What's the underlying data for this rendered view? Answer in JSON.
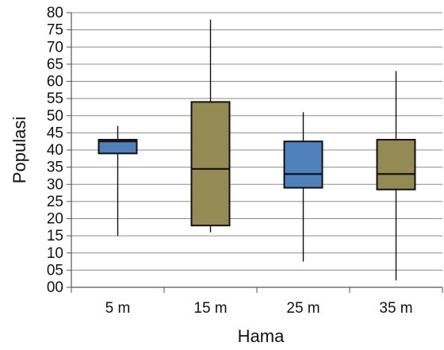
{
  "chart_data": {
    "type": "boxplot",
    "xlabel": "Hama",
    "ylabel": "Populasi",
    "ylim": [
      0,
      80
    ],
    "ytick_step": 5,
    "yticks": [
      "00",
      "05",
      "10",
      "15",
      "20",
      "25",
      "30",
      "35",
      "40",
      "45",
      "50",
      "55",
      "60",
      "65",
      "70",
      "75",
      "80"
    ],
    "categories": [
      "5 m",
      "15 m",
      "25 m",
      "35 m"
    ],
    "boxes": [
      {
        "category": "5 m",
        "min": 15,
        "q1": 39,
        "median": 42.5,
        "q3": 43,
        "max": 47,
        "color": "#4f81bd"
      },
      {
        "category": "15 m",
        "min": 16,
        "q1": 18,
        "median": 34.5,
        "q3": 54,
        "max": 78,
        "color": "#948a54"
      },
      {
        "category": "25 m",
        "min": 7.5,
        "q1": 29,
        "median": 33,
        "q3": 42.5,
        "max": 51,
        "color": "#4f81bd"
      },
      {
        "category": "35 m",
        "min": 2,
        "q1": 28.5,
        "median": 33,
        "q3": 43,
        "max": 63,
        "color": "#948a54"
      }
    ],
    "grid": true,
    "legend": "none"
  }
}
